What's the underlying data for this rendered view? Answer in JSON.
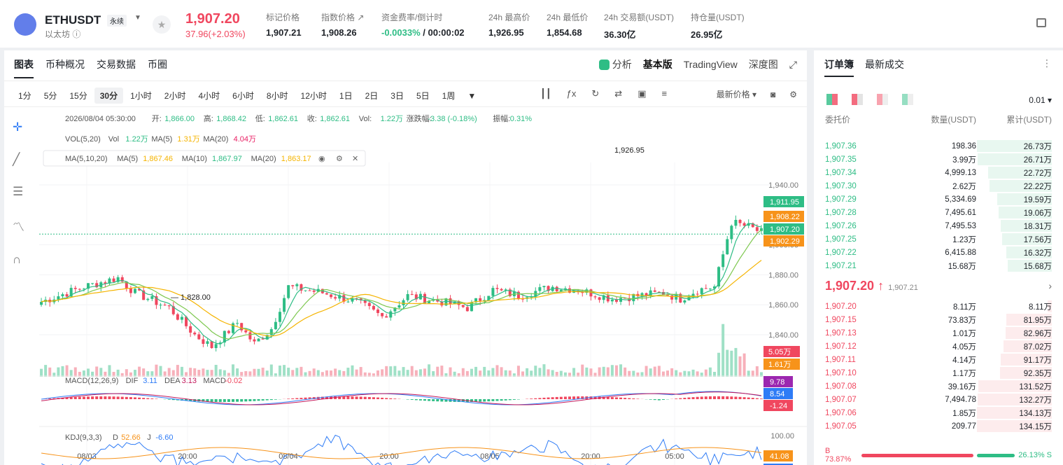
{
  "header": {
    "symbol": "ETHUSDT",
    "perp": "永续",
    "name": "以太坊",
    "price": "1,907.20",
    "change": "37.96(+2.03%)",
    "stats": [
      {
        "label": "标记价格",
        "value": "1,907.21"
      },
      {
        "label": "指数价格 ↗",
        "value": "1,908.26"
      },
      {
        "label": "资金费率/倒计时",
        "value": "-0.0033%",
        "value2": " / 00:00:02"
      },
      {
        "label": "24h 最高价",
        "value": "1,926.95"
      },
      {
        "label": "24h 最低价",
        "value": "1,854.68"
      },
      {
        "label": "24h 交易额(USDT)",
        "value": "36.30亿"
      },
      {
        "label": "持仓量(USDT)",
        "value": "26.95亿"
      }
    ]
  },
  "chart_tabs": [
    "图表",
    "币种概况",
    "交易数据",
    "币圈"
  ],
  "chart_tabs_right": [
    "分析",
    "基本版",
    "TradingView",
    "深度图"
  ],
  "intervals": [
    "1分",
    "5分",
    "15分",
    "30分",
    "1小时",
    "2小时",
    "4小时",
    "6小时",
    "8小时",
    "12小时",
    "1日",
    "2日",
    "3日",
    "5日",
    "1周"
  ],
  "price_type": "最新价格",
  "legend": {
    "date": "2026/08/04 05:30:00",
    "open_l": "开:",
    "open": "1,866.00",
    "high_l": "高:",
    "high": "1,868.42",
    "low_l": "低:",
    "low": "1,862.61",
    "close_l": "收:",
    "close": "1,862.61",
    "vol_l": "Vol:",
    "vol": "1.22万",
    "chg_l": "涨跌幅:",
    "chg": "-3.38 (-0.18%)",
    "amp_l": "振幅:",
    "amp": "0.31%"
  },
  "vol_legend": {
    "name": "VOL(5,20)",
    "vol_l": "Vol",
    "vol": "1.22万",
    "ma5_l": "MA(5)",
    "ma5": "1.31万",
    "ma20_l": "MA(20)",
    "ma20": "4.04万"
  },
  "ma_legend": {
    "name": "MA(5,10,20)",
    "ma5_l": "MA(5)",
    "ma5": "1,867.46",
    "ma10_l": "MA(10)",
    "ma10": "1,867.97",
    "ma20_l": "MA(20)",
    "ma20": "1,863.17"
  },
  "macd_legend": {
    "name": "MACD(12,26,9)",
    "dif_l": "DIF",
    "dif": "3.11",
    "dea_l": "DEA",
    "dea": "3.13",
    "macd_l": "MACD",
    "macd": "-0.02"
  },
  "kdj_legend": {
    "name": "KDJ(9,3,3)",
    "d_l": "D",
    "d": "52.66",
    "j_l": "J",
    "j": "-6.60"
  },
  "chart_data": {
    "type": "candlestick",
    "y_ticks": [
      "1,940.00",
      "1,900.00",
      "1,880.00",
      "1,860.00",
      "1,840.00"
    ],
    "y_range": [
      1820,
      1946
    ],
    "x_ticks": [
      "08/03",
      "20:00",
      "08/04",
      "20:00",
      "08/05",
      "20:00",
      "05:00"
    ],
    "high_mark": "1,926.95",
    "low_mark": "1,828.00",
    "price_tags": [
      {
        "v": "1,911.95",
        "c": "#2ebd85"
      },
      {
        "v": "1,908.22",
        "c": "#f7931a"
      },
      {
        "v": "1,907.20",
        "c": "#2ebd85"
      },
      {
        "v": "1,902.29",
        "c": "#f7931a"
      }
    ],
    "vol_tags": [
      {
        "v": "5.05万",
        "c": "#f0475f"
      },
      {
        "v": "1.61万",
        "c": "#f7931a"
      }
    ],
    "macd_tags": [
      {
        "v": "9.78",
        "c": "#9c27b0"
      },
      {
        "v": "8.54",
        "c": "#2f7cf6"
      },
      {
        "v": "-1.24",
        "c": "#f0475f"
      }
    ],
    "kdj_ticks": [
      "100.00"
    ],
    "kdj_tags": [
      {
        "v": "41.08",
        "c": "#f7931a"
      },
      {
        "v": "1.43",
        "c": "#2f7cf6"
      }
    ]
  },
  "book": {
    "tabs": [
      "订单簿",
      "最新成交"
    ],
    "precision": "0.01",
    "headers": [
      "委托价",
      "数量(USDT)",
      "累计(USDT)"
    ],
    "asks": [
      [
        "1,907.36",
        "198.36",
        "26.73万",
        100
      ],
      [
        "1,907.35",
        "3.99万",
        "26.71万",
        99
      ],
      [
        "1,907.34",
        "4,999.13",
        "22.72万",
        85
      ],
      [
        "1,907.30",
        "2.62万",
        "22.22万",
        83
      ],
      [
        "1,907.29",
        "5,334.69",
        "19.59万",
        73
      ],
      [
        "1,907.28",
        "7,495.61",
        "19.06万",
        71
      ],
      [
        "1,907.26",
        "7,495.53",
        "18.31万",
        68
      ],
      [
        "1,907.25",
        "1.23万",
        "17.56万",
        66
      ],
      [
        "1,907.22",
        "6,415.88",
        "16.32万",
        61
      ],
      [
        "1,907.21",
        "15.68万",
        "15.68万",
        59
      ]
    ],
    "mid": "1,907.20",
    "mark": "1,907.21",
    "bids": [
      [
        "1,907.20",
        "8.11万",
        "8.11万",
        6
      ],
      [
        "1,907.15",
        "73.83万",
        "81.95万",
        61
      ],
      [
        "1,907.13",
        "1.01万",
        "82.96万",
        62
      ],
      [
        "1,907.12",
        "4.05万",
        "87.02万",
        65
      ],
      [
        "1,907.11",
        "4.14万",
        "91.17万",
        68
      ],
      [
        "1,907.10",
        "1.17万",
        "92.35万",
        69
      ],
      [
        "1,907.08",
        "39.16万",
        "131.52万",
        98
      ],
      [
        "1,907.07",
        "7,494.78",
        "132.27万",
        99
      ],
      [
        "1,907.06",
        "1.85万",
        "134.13万",
        100
      ],
      [
        "1,907.05",
        "209.77",
        "134.15万",
        100
      ]
    ],
    "buy_ratio": "B 73.87%",
    "sell_ratio": "26.13% S"
  }
}
